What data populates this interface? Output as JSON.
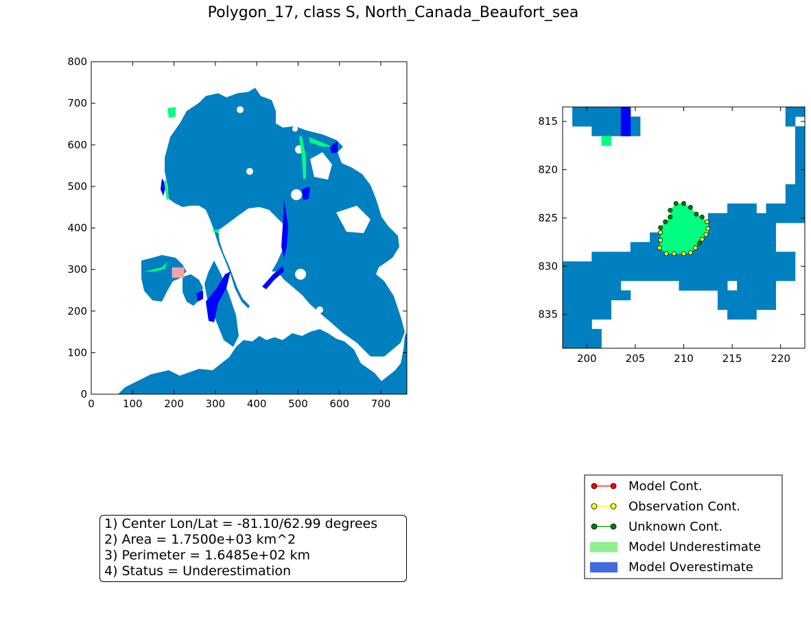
{
  "title": "Polygon_17, class S, North_Canada_Beaufort_sea",
  "colors": {
    "ocean": "#0080c0",
    "underestimate": "#00ff80",
    "overestimate": "#0000ff",
    "highlight": "#f4a3a3",
    "model_cont": "#ff0000",
    "observation_cont": "#ffff00",
    "unknown_cont": "#008000",
    "legend_underestimate": "#90ee90",
    "legend_overestimate": "#4169e1"
  },
  "info": {
    "line1": "1) Center Lon/Lat = -81.10/62.99 degrees",
    "line2": "2) Area = 1.7500e+03 km^2",
    "line3": "3) Perimeter = 1.6485e+02 km",
    "line4": "4) Status = Underestimation"
  },
  "legend": [
    {
      "label": "Model Cont.",
      "kind": "line",
      "color": "#ff0000"
    },
    {
      "label": "Observation Cont.",
      "kind": "line",
      "color": "#ffff00"
    },
    {
      "label": "Unknown Cont.",
      "kind": "line",
      "color": "#008000"
    },
    {
      "label": "Model Underestimate",
      "kind": "patch",
      "color": "#90ee90"
    },
    {
      "label": "Model Overestimate",
      "kind": "patch",
      "color": "#4169e1"
    }
  ],
  "chart_data": [
    {
      "type": "heatmap",
      "xlim": [
        0,
        763
      ],
      "ylim": [
        0,
        800
      ],
      "xticks": [
        0,
        100,
        200,
        300,
        400,
        500,
        600,
        700
      ],
      "yticks": [
        0,
        100,
        200,
        300,
        400,
        500,
        600,
        700,
        800
      ],
      "highlight_region": {
        "x": [
          195,
          225
        ],
        "y": [
          280,
          305
        ]
      }
    },
    {
      "type": "heatmap",
      "xlim": [
        197.5,
        222.5
      ],
      "ylim": [
        838.5,
        813.5
      ],
      "xticks": [
        200,
        205,
        210,
        215,
        220
      ],
      "yticks": [
        815,
        820,
        825,
        830,
        835
      ],
      "ocean_rows": [
        {
          "y": 814,
          "cols": [
            [
              199,
              204
            ],
            [
              221,
              222
            ]
          ]
        },
        {
          "y": 815,
          "cols": [
            [
              199,
              205
            ],
            [
              221,
              221
            ]
          ]
        },
        {
          "y": 816,
          "cols": [
            [
              201,
              205
            ],
            [
              222,
              222
            ]
          ]
        },
        {
          "y": 817,
          "cols": [
            [
              222,
              222
            ]
          ]
        },
        {
          "y": 818,
          "cols": [
            [
              222,
              222
            ]
          ]
        },
        {
          "y": 819,
          "cols": [
            [
              222,
              222
            ]
          ]
        },
        {
          "y": 820,
          "cols": [
            [
              222,
              222
            ]
          ]
        },
        {
          "y": 821,
          "cols": [
            [
              222,
              222
            ]
          ]
        },
        {
          "y": 822,
          "cols": [
            [
              221,
              222
            ]
          ]
        },
        {
          "y": 823,
          "cols": [
            [
              221,
              222
            ]
          ]
        },
        {
          "y": 824,
          "cols": [
            [
              215,
              217
            ],
            [
              219,
              222
            ]
          ]
        },
        {
          "y": 825,
          "cols": [
            [
              213,
              222
            ]
          ]
        },
        {
          "y": 826,
          "cols": [
            [
              213,
              219
            ]
          ]
        },
        {
          "y": 827,
          "cols": [
            [
              207,
              219
            ]
          ]
        },
        {
          "y": 828,
          "cols": [
            [
              205,
              219
            ]
          ]
        },
        {
          "y": 829,
          "cols": [
            [
              201,
              221
            ]
          ]
        },
        {
          "y": 830,
          "cols": [
            [
              197,
              221
            ]
          ]
        },
        {
          "y": 831,
          "cols": [
            [
              197,
              221
            ]
          ]
        },
        {
          "y": 832,
          "cols": [
            [
              197,
              203
            ],
            [
              210,
              214
            ],
            [
              216,
              219
            ]
          ]
        },
        {
          "y": 833,
          "cols": [
            [
              197,
              204
            ],
            [
              214,
              219
            ]
          ]
        },
        {
          "y": 834,
          "cols": [
            [
              197,
              202
            ],
            [
              214,
              219
            ]
          ]
        },
        {
          "y": 835,
          "cols": [
            [
              197,
              202
            ],
            [
              215,
              217
            ]
          ]
        },
        {
          "y": 836,
          "cols": [
            [
              197,
              200
            ]
          ]
        },
        {
          "y": 837,
          "cols": [
            [
              197,
              201
            ]
          ]
        },
        {
          "y": 838,
          "cols": [
            [
              197,
              201
            ]
          ]
        }
      ],
      "overestimate_cells": [
        [
          204,
          814
        ],
        [
          204,
          815
        ],
        [
          204,
          816
        ]
      ],
      "underestimate_cells": [
        [
          202,
          817
        ]
      ],
      "polygon_contour": [
        [
          209.2,
          823.5
        ],
        [
          210.0,
          823.5
        ],
        [
          210.7,
          823.9
        ],
        [
          211.3,
          824.6
        ],
        [
          211.9,
          824.9
        ],
        [
          212.4,
          825.4
        ],
        [
          212.5,
          826.1
        ],
        [
          212.3,
          826.7
        ],
        [
          211.9,
          827.2
        ],
        [
          211.6,
          827.6
        ],
        [
          211.2,
          828.1
        ],
        [
          210.7,
          828.6
        ],
        [
          210.0,
          828.7
        ],
        [
          209.0,
          828.7
        ],
        [
          208.2,
          828.7
        ],
        [
          207.5,
          828.1
        ],
        [
          207.6,
          827.3
        ],
        [
          207.6,
          826.5
        ],
        [
          207.6,
          826.0
        ],
        [
          208.1,
          825.4
        ],
        [
          208.6,
          824.9
        ],
        [
          208.6,
          824.2
        ]
      ],
      "contour_point_types": [
        "unknown",
        "unknown",
        "unknown",
        "unknown",
        "unknown",
        "observation",
        "observation",
        "observation",
        "observation",
        "unknown",
        "observation",
        "observation",
        "observation",
        "observation",
        "observation",
        "observation",
        "observation",
        "observation",
        "unknown",
        "unknown",
        "unknown",
        "unknown"
      ]
    }
  ]
}
